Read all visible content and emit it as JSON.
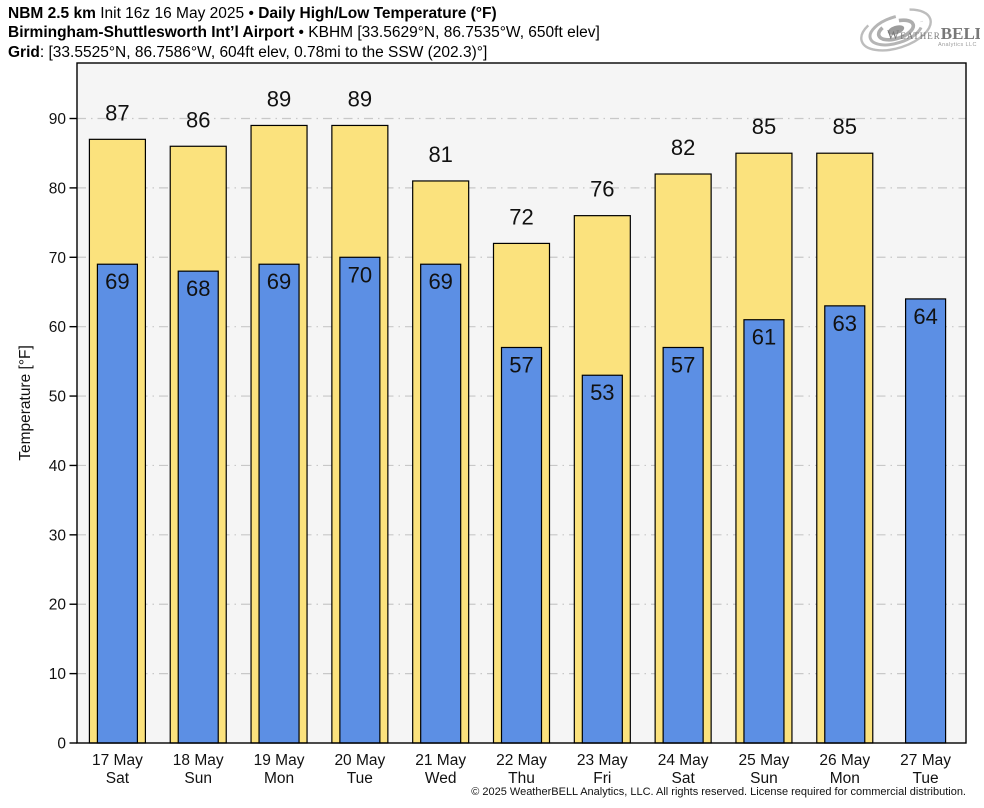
{
  "header": {
    "line1": {
      "model": "NBM 2.5 km",
      "init": "Init 16z 16 May 2025",
      "sep": "•",
      "product": "Daily High/Low Temperature (°F)"
    },
    "line2": {
      "station": "Birmingham-Shuttlesworth Int’l Airport",
      "sep": "•",
      "details": "KBHM [33.5629°N, 86.7535°W, 650ft elev]"
    },
    "line3": {
      "label": "Grid",
      "details": ": [33.5525°N, 86.7586°W, 604ft elev, 0.78mi to the SSW (202.3)°]"
    }
  },
  "logo": {
    "word_weather": "Weather",
    "word_bell": "BELL",
    "subtext": "Analytics LLC"
  },
  "footer": {
    "copyright": "© 2025 WeatherBELL Analytics, LLC. All rights reserved. License required for commercial distribution."
  },
  "chart_data": {
    "type": "bar",
    "title": "Daily High/Low Temperature (°F)",
    "xlabel": "",
    "ylabel": "Temperature [°F]",
    "ylim": [
      0,
      98
    ],
    "yticks": [
      0,
      10,
      20,
      30,
      40,
      50,
      60,
      70,
      80,
      90
    ],
    "grid": true,
    "legend_position": "none",
    "categories": [
      [
        "17 May",
        "Sat"
      ],
      [
        "18 May",
        "Sun"
      ],
      [
        "19 May",
        "Mon"
      ],
      [
        "20 May",
        "Tue"
      ],
      [
        "21 May",
        "Wed"
      ],
      [
        "22 May",
        "Thu"
      ],
      [
        "23 May",
        "Fri"
      ],
      [
        "24 May",
        "Sat"
      ],
      [
        "25 May",
        "Sun"
      ],
      [
        "26 May",
        "Mon"
      ],
      [
        "27 May",
        "Tue"
      ]
    ],
    "series": [
      {
        "name": "High",
        "color": "#FBE27D",
        "values": [
          87,
          86,
          89,
          89,
          81,
          72,
          76,
          82,
          85,
          85,
          null
        ]
      },
      {
        "name": "Low",
        "color": "#5C8FE4",
        "values": [
          69,
          68,
          69,
          70,
          69,
          57,
          53,
          57,
          61,
          63,
          64
        ]
      }
    ],
    "colors": {
      "plot_background": "#F5F5F5",
      "gridline": "#C8C8C8",
      "bar_border": "#000000",
      "text": "#111111"
    }
  }
}
